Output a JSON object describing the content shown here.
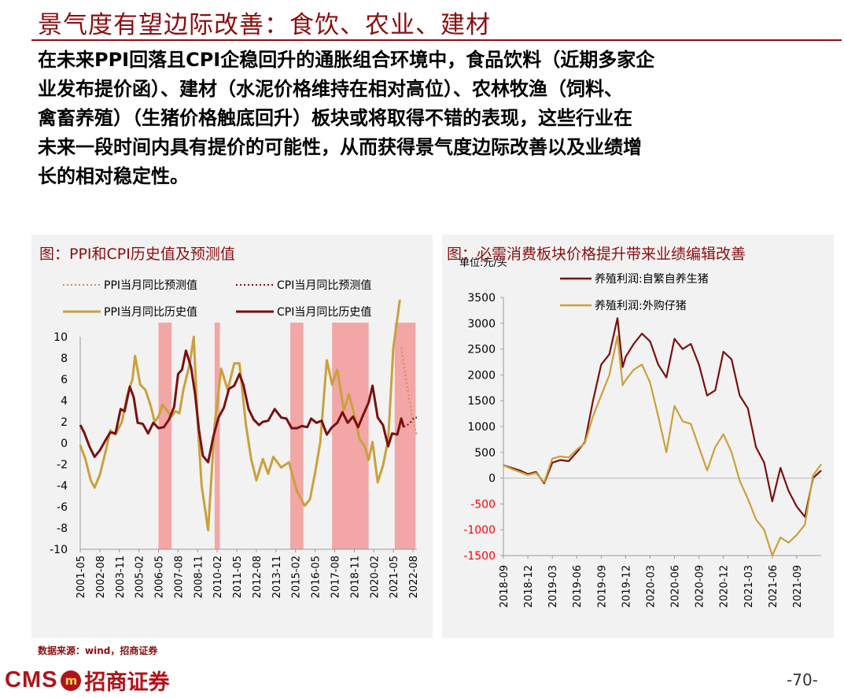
{
  "slide": {
    "title": "景气度有望边际改善：食饮、农业、建材",
    "body": "在未来PPI回落且CPI企稳回升的通胀组合环境中，食品饮料（近期多家企\n业发布提价函）、建材（水泥价格维持在相对高位）、农林牧渔（饲料、\n禽畜养殖）（生猪价格触底回升）板块或将取得不错的表现，这些行业在\n未来一段时间内具有提价的可能性，从而获得景气度边际改善以及业绩增\n长的相对稳定性。",
    "source": "数据来源：wind，招商证券",
    "page_number": "-70-",
    "logo": {
      "cms": "CMS",
      "badge": "m",
      "name": "招商证券"
    }
  },
  "colors": {
    "accent": "#8b0e10",
    "ppi": "#c9a13c",
    "cpi": "#7a1010",
    "shade": "#f2a6a6",
    "panel": "#f2f2f2"
  },
  "chart_data": [
    {
      "type": "line",
      "title": "图：PPI和CPI历史值及预测值",
      "ylim": [
        -10,
        10
      ],
      "yticks": [
        10,
        8,
        6,
        4,
        2,
        0,
        -2,
        -4,
        -6,
        -8,
        -10
      ],
      "xticks": [
        "2001-05",
        "2002-08",
        "2003-11",
        "2005-02",
        "2006-05",
        "2007-08",
        "2008-11",
        "2010-02",
        "2011-05",
        "2012-08",
        "2013-11",
        "2015-02",
        "2016-05",
        "2017-08",
        "2018-11",
        "2020-02",
        "2021-05",
        "2022-08"
      ],
      "legend": [
        "PPI当月同比预测值",
        "CPI当月同比预测值",
        "PPI当月同比历史值",
        "CPI当月同比历史值"
      ],
      "legend_position": "top",
      "shaded_periods": [
        [
          "2006-05",
          "2007-03"
        ],
        [
          "2009-12",
          "2010-04"
        ],
        [
          "2014-10",
          "2015-08"
        ],
        [
          "2017-06",
          "2019-10"
        ],
        [
          "2021-06",
          "2022-10"
        ]
      ],
      "series": [
        {
          "name": "PPI当月同比历史值",
          "style": "solid",
          "color": "#c9a13c",
          "points": [
            [
              "2001-05",
              -0.2
            ],
            [
              "2001-09",
              -1.5
            ],
            [
              "2002-01",
              -3.5
            ],
            [
              "2002-04",
              -4.2
            ],
            [
              "2002-08",
              -3.0
            ],
            [
              "2003-01",
              -0.5
            ],
            [
              "2003-04",
              1.2
            ],
            [
              "2003-08",
              0.8
            ],
            [
              "2004-01",
              2.0
            ],
            [
              "2004-05",
              4.5
            ],
            [
              "2004-09",
              6.0
            ],
            [
              "2004-11",
              8.2
            ],
            [
              "2005-03",
              5.5
            ],
            [
              "2005-07",
              5.0
            ],
            [
              "2005-11",
              3.5
            ],
            [
              "2006-02",
              2.0
            ],
            [
              "2006-05",
              2.5
            ],
            [
              "2006-08",
              3.6
            ],
            [
              "2006-12",
              3.0
            ],
            [
              "2007-03",
              2.5
            ],
            [
              "2007-06",
              3.0
            ],
            [
              "2007-09",
              2.8
            ],
            [
              "2007-12",
              5.0
            ],
            [
              "2008-05",
              7.5
            ],
            [
              "2008-08",
              10.0
            ],
            [
              "2008-11",
              2.0
            ],
            [
              "2009-02",
              -4.0
            ],
            [
              "2009-07",
              -8.2
            ],
            [
              "2009-12",
              1.7
            ],
            [
              "2010-05",
              7.0
            ],
            [
              "2010-10",
              5.0
            ],
            [
              "2011-03",
              7.5
            ],
            [
              "2011-07",
              7.5
            ],
            [
              "2011-12",
              1.7
            ],
            [
              "2012-04",
              -1.5
            ],
            [
              "2012-08",
              -3.5
            ],
            [
              "2013-01",
              -1.5
            ],
            [
              "2013-05",
              -2.9
            ],
            [
              "2013-09",
              -1.3
            ],
            [
              "2014-03",
              -2.3
            ],
            [
              "2014-09",
              -1.8
            ],
            [
              "2015-03",
              -4.5
            ],
            [
              "2015-09",
              -5.9
            ],
            [
              "2016-01",
              -5.3
            ],
            [
              "2016-05",
              -2.8
            ],
            [
              "2016-09",
              0.1
            ],
            [
              "2017-02",
              7.8
            ],
            [
              "2017-06",
              5.5
            ],
            [
              "2017-10",
              6.9
            ],
            [
              "2018-03",
              3.1
            ],
            [
              "2018-07",
              4.6
            ],
            [
              "2018-11",
              2.7
            ],
            [
              "2019-03",
              0.4
            ],
            [
              "2019-07",
              -0.3
            ],
            [
              "2019-10",
              -1.6
            ],
            [
              "2020-01",
              0.1
            ],
            [
              "2020-05",
              -3.7
            ],
            [
              "2020-09",
              -2.1
            ],
            [
              "2021-01",
              0.3
            ],
            [
              "2021-05",
              9.0
            ],
            [
              "2021-10",
              13.5
            ]
          ]
        },
        {
          "name": "CPI当月同比历史值",
          "style": "solid",
          "color": "#7a1010",
          "points": [
            [
              "2001-05",
              1.7
            ],
            [
              "2001-08",
              1.0
            ],
            [
              "2001-12",
              -0.3
            ],
            [
              "2002-04",
              -1.3
            ],
            [
              "2002-08",
              -0.7
            ],
            [
              "2003-01",
              0.4
            ],
            [
              "2003-04",
              1.0
            ],
            [
              "2003-08",
              0.9
            ],
            [
              "2003-12",
              3.2
            ],
            [
              "2004-03",
              3.0
            ],
            [
              "2004-07",
              5.3
            ],
            [
              "2004-10",
              4.3
            ],
            [
              "2005-01",
              1.9
            ],
            [
              "2005-05",
              1.8
            ],
            [
              "2005-09",
              0.9
            ],
            [
              "2006-01",
              1.9
            ],
            [
              "2006-05",
              1.4
            ],
            [
              "2006-09",
              1.5
            ],
            [
              "2007-01",
              2.2
            ],
            [
              "2007-05",
              3.4
            ],
            [
              "2007-08",
              6.5
            ],
            [
              "2007-11",
              6.9
            ],
            [
              "2008-02",
              8.7
            ],
            [
              "2008-06",
              7.1
            ],
            [
              "2008-09",
              4.6
            ],
            [
              "2008-12",
              1.2
            ],
            [
              "2009-03",
              -1.2
            ],
            [
              "2009-07",
              -1.8
            ],
            [
              "2009-11",
              0.6
            ],
            [
              "2010-03",
              2.4
            ],
            [
              "2010-07",
              3.3
            ],
            [
              "2010-11",
              5.1
            ],
            [
              "2011-03",
              5.4
            ],
            [
              "2011-07",
              6.5
            ],
            [
              "2011-10",
              5.5
            ],
            [
              "2012-02",
              3.2
            ],
            [
              "2012-06",
              2.2
            ],
            [
              "2012-10",
              1.7
            ],
            [
              "2013-01",
              2.0
            ],
            [
              "2013-05",
              2.1
            ],
            [
              "2013-10",
              3.2
            ],
            [
              "2014-03",
              2.4
            ],
            [
              "2014-07",
              2.3
            ],
            [
              "2014-11",
              1.4
            ],
            [
              "2015-03",
              1.4
            ],
            [
              "2015-07",
              1.6
            ],
            [
              "2015-11",
              1.5
            ],
            [
              "2016-02",
              2.3
            ],
            [
              "2016-06",
              1.9
            ],
            [
              "2016-10",
              2.1
            ],
            [
              "2017-02",
              0.8
            ],
            [
              "2017-06",
              1.5
            ],
            [
              "2017-10",
              1.9
            ],
            [
              "2018-02",
              2.9
            ],
            [
              "2018-06",
              1.9
            ],
            [
              "2018-10",
              2.5
            ],
            [
              "2019-02",
              1.5
            ],
            [
              "2019-06",
              2.7
            ],
            [
              "2019-10",
              3.8
            ],
            [
              "2020-01",
              5.4
            ],
            [
              "2020-05",
              2.4
            ],
            [
              "2020-09",
              1.7
            ],
            [
              "2021-01",
              -0.3
            ],
            [
              "2021-04",
              0.9
            ],
            [
              "2021-08",
              0.8
            ],
            [
              "2021-11",
              2.3
            ],
            [
              "2022-01",
              1.5
            ]
          ]
        },
        {
          "name": "PPI当月同比预测值",
          "style": "dotted",
          "color": "#e0874a",
          "points": [
            [
              "2021-11",
              9.0
            ],
            [
              "2022-02",
              6.5
            ],
            [
              "2022-05",
              4.2
            ],
            [
              "2022-08",
              2.0
            ],
            [
              "2022-11",
              0.7
            ]
          ]
        },
        {
          "name": "CPI当月同比预测值",
          "style": "dotted",
          "color": "#7a1010",
          "points": [
            [
              "2022-01",
              1.5
            ],
            [
              "2022-05",
              1.8
            ],
            [
              "2022-09",
              2.4
            ],
            [
              "2022-11",
              2.4
            ]
          ]
        }
      ]
    },
    {
      "type": "line",
      "title": "图：必需消费板块价格提升带来业绩编辑改善",
      "ylabel": "单位:元/头",
      "ylim": [
        -1500,
        3500
      ],
      "yticks": [
        3500,
        3000,
        2500,
        2000,
        1500,
        1000,
        500,
        0,
        -500,
        -1000,
        -1500
      ],
      "negative_tick_color": "#ff0000",
      "xticks": [
        "2018-09",
        "2018-12",
        "2019-03",
        "2019-06",
        "2019-09",
        "2019-12",
        "2020-03",
        "2020-06",
        "2020-09",
        "2020-12",
        "2021-03",
        "2021-06",
        "2021-09"
      ],
      "legend": [
        "养殖利润:自繁自养生猪",
        "养殖利润:外购仔猪"
      ],
      "series": [
        {
          "name": "养殖利润:自繁自养生猪",
          "color": "#7a1010",
          "points": [
            [
              "2018-09",
              250
            ],
            [
              "2018-10",
              200
            ],
            [
              "2018-11",
              150
            ],
            [
              "2018-12",
              80
            ],
            [
              "2019-01",
              120
            ],
            [
              "2019-02",
              -100
            ],
            [
              "2019-03",
              300
            ],
            [
              "2019-04",
              350
            ],
            [
              "2019-05",
              330
            ],
            [
              "2019-06",
              500
            ],
            [
              "2019-07",
              700
            ],
            [
              "2019-08",
              1500
            ],
            [
              "2019-09",
              2200
            ],
            [
              "2019-10",
              2400
            ],
            [
              "2019-11",
              3100
            ],
            [
              "2019-11-20",
              2150
            ],
            [
              "2019-12",
              2350
            ],
            [
              "2020-01",
              2600
            ],
            [
              "2020-02",
              2800
            ],
            [
              "2020-03",
              2650
            ],
            [
              "2020-04",
              2200
            ],
            [
              "2020-05",
              1950
            ],
            [
              "2020-06",
              2700
            ],
            [
              "2020-07",
              2500
            ],
            [
              "2020-08",
              2600
            ],
            [
              "2020-09",
              2200
            ],
            [
              "2020-10",
              1600
            ],
            [
              "2020-11",
              1700
            ],
            [
              "2020-12",
              2450
            ],
            [
              "2021-01",
              2300
            ],
            [
              "2021-02",
              1600
            ],
            [
              "2021-03",
              1350
            ],
            [
              "2021-04",
              600
            ],
            [
              "2021-05",
              300
            ],
            [
              "2021-06",
              -450
            ],
            [
              "2021-07",
              200
            ],
            [
              "2021-08",
              -250
            ],
            [
              "2021-09",
              -550
            ],
            [
              "2021-10",
              -750
            ],
            [
              "2021-11",
              0
            ],
            [
              "2021-12",
              150
            ]
          ]
        },
        {
          "name": "养殖利润:外购仔猪",
          "color": "#c9a13c",
          "points": [
            [
              "2018-09",
              250
            ],
            [
              "2018-10",
              180
            ],
            [
              "2018-11",
              120
            ],
            [
              "2018-12",
              60
            ],
            [
              "2019-01",
              100
            ],
            [
              "2019-02",
              -80
            ],
            [
              "2019-03",
              380
            ],
            [
              "2019-04",
              420
            ],
            [
              "2019-05",
              400
            ],
            [
              "2019-06",
              550
            ],
            [
              "2019-07",
              680
            ],
            [
              "2019-08",
              1200
            ],
            [
              "2019-09",
              1600
            ],
            [
              "2019-10",
              2000
            ],
            [
              "2019-11",
              2750
            ],
            [
              "2019-11-20",
              1800
            ],
            [
              "2019-12",
              1900
            ],
            [
              "2020-01",
              2100
            ],
            [
              "2020-02",
              2200
            ],
            [
              "2020-03",
              1850
            ],
            [
              "2020-04",
              1200
            ],
            [
              "2020-05",
              500
            ],
            [
              "2020-06",
              1400
            ],
            [
              "2020-07",
              1100
            ],
            [
              "2020-08",
              1050
            ],
            [
              "2020-09",
              600
            ],
            [
              "2020-10",
              150
            ],
            [
              "2020-11",
              600
            ],
            [
              "2020-12",
              850
            ],
            [
              "2021-01",
              500
            ],
            [
              "2021-02",
              -50
            ],
            [
              "2021-03",
              -400
            ],
            [
              "2021-04",
              -800
            ],
            [
              "2021-05",
              -1000
            ],
            [
              "2021-06",
              -1500
            ],
            [
              "2021-07",
              -1150
            ],
            [
              "2021-08",
              -1250
            ],
            [
              "2021-09",
              -1100
            ],
            [
              "2021-10",
              -900
            ],
            [
              "2021-11",
              50
            ],
            [
              "2021-12",
              270
            ]
          ]
        }
      ]
    }
  ]
}
